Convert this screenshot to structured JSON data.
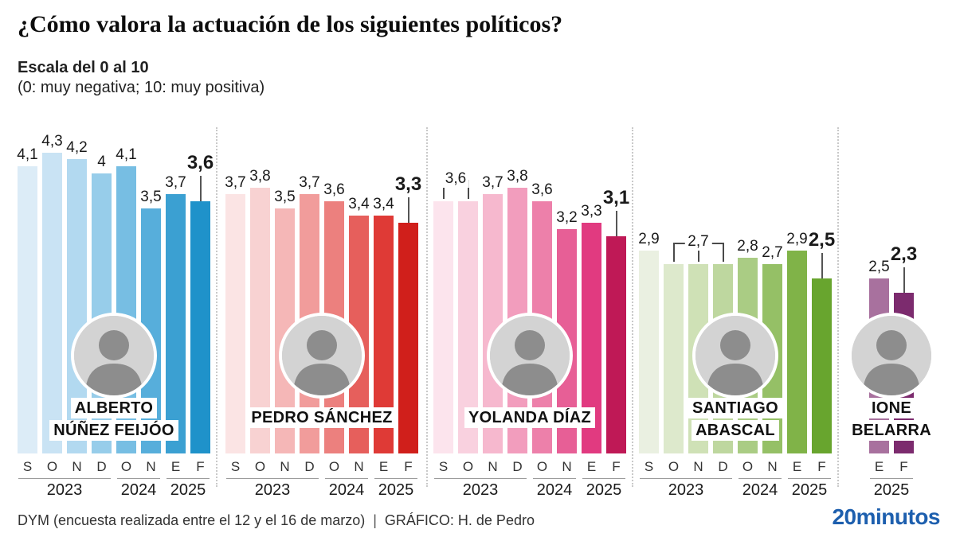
{
  "header": {
    "title": "¿Cómo valora la actuación de los siguientes políticos?",
    "scale_label": "Escala del 0 al 10",
    "scale_note": "(0: muy negativa; 10: muy positiva)"
  },
  "footer": {
    "source": "DYM (encuesta realizada entre el 12 y el 16 de marzo)",
    "separator": "|",
    "credit": "GRÁFICO: H. de Pedro",
    "logo": "20minutos",
    "logo_color": "#1d5fae"
  },
  "chart_data": [
    {
      "type": "bar",
      "politician": "Alberto Núñez Feijóo",
      "name_lines": [
        "ALBERTO",
        "NÚÑEZ FEIJÓO"
      ],
      "categories": [
        "S",
        "O",
        "N",
        "D",
        "O",
        "N",
        "E",
        "F"
      ],
      "values": [
        4.1,
        4.3,
        4.2,
        4.0,
        4.1,
        3.5,
        3.7,
        3.6
      ],
      "labels": [
        "4,1",
        "4,3",
        "4,2",
        "4",
        "4,1",
        "3,5",
        "3,7",
        "3,6"
      ],
      "colors": [
        "#dcecf7",
        "#c9e3f4",
        "#b2d9f0",
        "#97cdea",
        "#77bee3",
        "#57aedb",
        "#3ba0d2",
        "#1f92ca"
      ],
      "brackets": [],
      "years": [
        {
          "label": "2023",
          "from": 0,
          "to": 3
        },
        {
          "label": "2024",
          "from": 4,
          "to": 5
        },
        {
          "label": "2025",
          "from": 6,
          "to": 7
        }
      ],
      "highlight_last": true
    },
    {
      "type": "bar",
      "politician": "Pedro Sánchez",
      "name_lines": [
        "PEDRO SÁNCHEZ"
      ],
      "categories": [
        "S",
        "O",
        "N",
        "D",
        "O",
        "N",
        "E",
        "F"
      ],
      "values": [
        3.7,
        3.8,
        3.5,
        3.7,
        3.6,
        3.4,
        3.4,
        3.3
      ],
      "labels": [
        "3,7",
        "3,8",
        "3,5",
        "3,7",
        "3,6",
        "3,4",
        "3,4",
        "3,3"
      ],
      "colors": [
        "#fbe4e4",
        "#f8d2d2",
        "#f5b7b7",
        "#f19c9b",
        "#ec807e",
        "#e65f5c",
        "#df3a36",
        "#d01f1b"
      ],
      "brackets": [],
      "years": [
        {
          "label": "2023",
          "from": 0,
          "to": 3
        },
        {
          "label": "2024",
          "from": 4,
          "to": 5
        },
        {
          "label": "2025",
          "from": 6,
          "to": 7
        }
      ],
      "highlight_last": true
    },
    {
      "type": "bar",
      "politician": "Yolanda Díaz",
      "name_lines": [
        "YOLANDA DÍAZ"
      ],
      "categories": [
        "S",
        "O",
        "N",
        "D",
        "O",
        "N",
        "E",
        "F"
      ],
      "values": [
        3.6,
        3.6,
        3.7,
        3.8,
        3.6,
        3.2,
        3.3,
        3.1
      ],
      "labels": [
        null,
        null,
        "3,7",
        "3,8",
        "3,6",
        "3,2",
        "3,3",
        "3,1"
      ],
      "colors": [
        "#fce4ed",
        "#f9d1df",
        "#f6b8ce",
        "#f29dbd",
        "#ed80aa",
        "#e75f96",
        "#e13a80",
        "#bf1956"
      ],
      "brackets": [
        {
          "label": "3,6",
          "from": 0,
          "to": 1
        }
      ],
      "years": [
        {
          "label": "2023",
          "from": 0,
          "to": 3
        },
        {
          "label": "2024",
          "from": 4,
          "to": 5
        },
        {
          "label": "2025",
          "from": 6,
          "to": 7
        }
      ],
      "highlight_last": true
    },
    {
      "type": "bar",
      "politician": "Santiago Abascal",
      "name_lines": [
        "SANTIAGO",
        "ABASCAL"
      ],
      "categories": [
        "S",
        "O",
        "N",
        "D",
        "O",
        "N",
        "E",
        "F"
      ],
      "values": [
        2.9,
        2.7,
        2.7,
        2.7,
        2.8,
        2.7,
        2.9,
        2.5
      ],
      "labels": [
        "2,9",
        null,
        null,
        null,
        "2,8",
        "2,7",
        "2,9",
        "2,5"
      ],
      "colors": [
        "#eaf0e1",
        "#dde9cc",
        "#cfe1b6",
        "#bed79f",
        "#aacc84",
        "#95c066",
        "#80b348",
        "#68a52e"
      ],
      "brackets": [
        {
          "label": "2,7",
          "from": 1,
          "to": 3
        }
      ],
      "years": [
        {
          "label": "2023",
          "from": 0,
          "to": 3
        },
        {
          "label": "2024",
          "from": 4,
          "to": 5
        },
        {
          "label": "2025",
          "from": 6,
          "to": 7
        }
      ],
      "highlight_last": true
    },
    {
      "type": "bar",
      "politician": "Ione Belarra",
      "name_lines": [
        "IONE",
        "BELARRA"
      ],
      "categories": [
        "E",
        "F"
      ],
      "values": [
        2.5,
        2.3
      ],
      "labels": [
        "2,5",
        "2,3"
      ],
      "colors": [
        "#a8719e",
        "#7c2b6e"
      ],
      "brackets": [],
      "years": [
        {
          "label": "2025",
          "from": 0,
          "to": 1
        }
      ],
      "highlight_last": true
    }
  ]
}
